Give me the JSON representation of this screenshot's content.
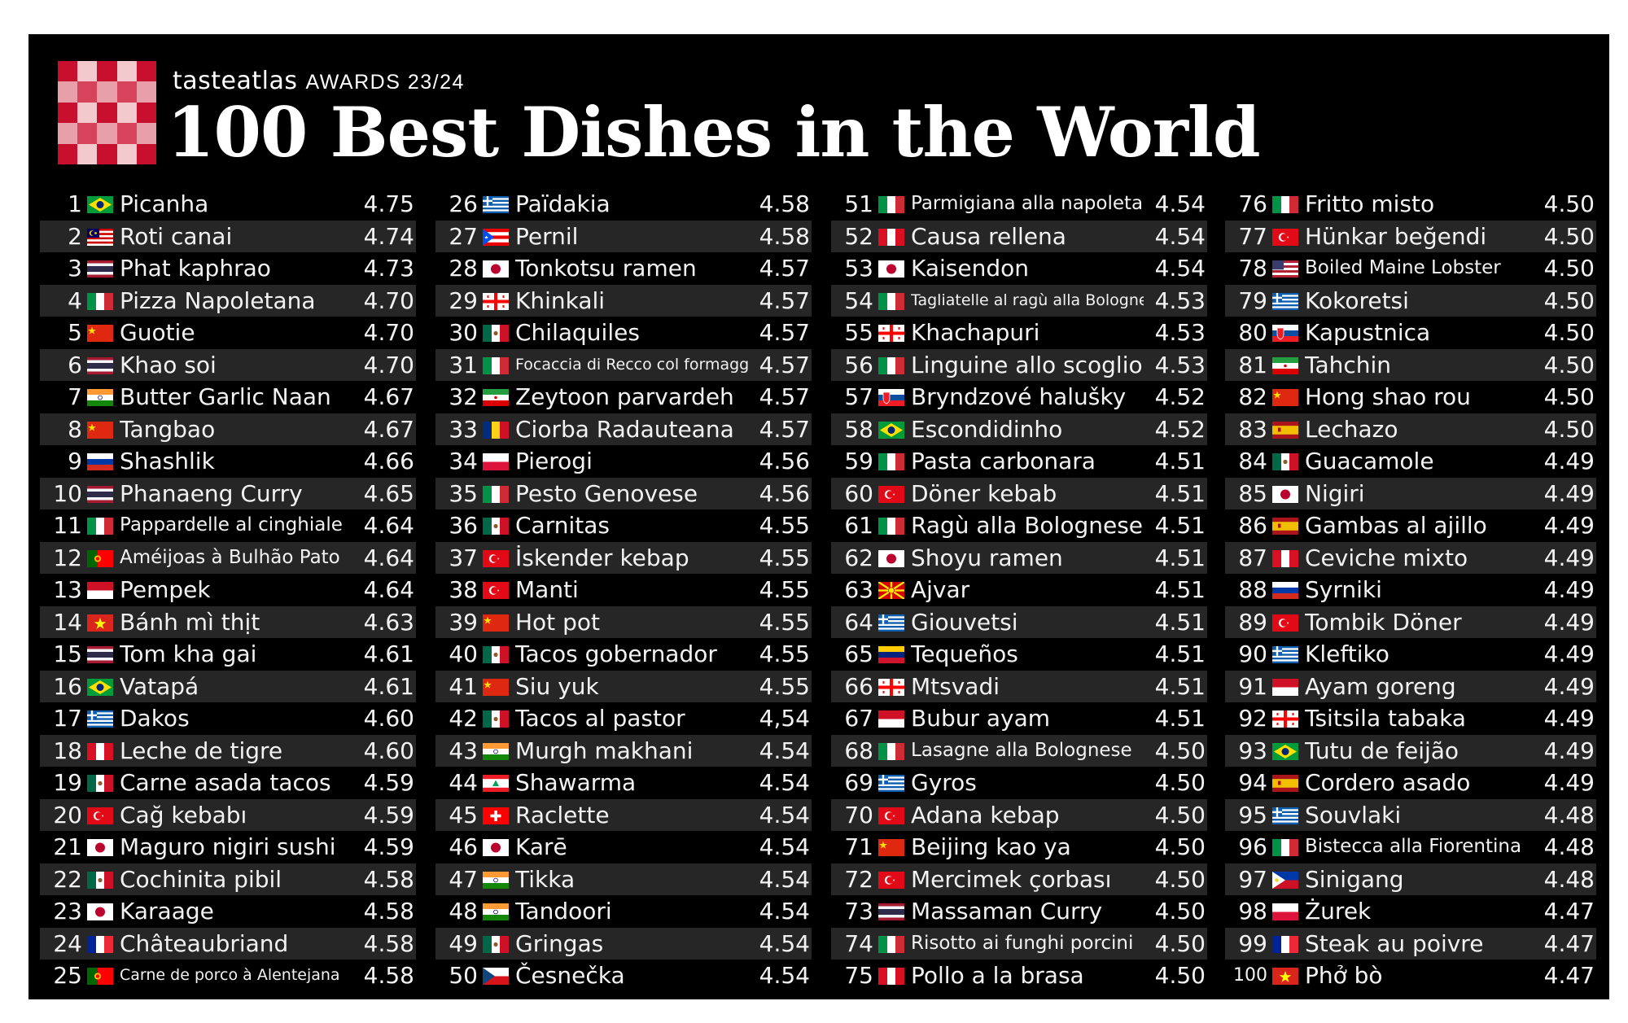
{
  "header": {
    "brand": "tasteatlas",
    "awards": "AWARDS 23/24",
    "title": "100 Best Dishes in the World"
  },
  "dishes": [
    {
      "rank": "1",
      "name": "Picanha",
      "score": "4.75",
      "flag": "flag-brazil-icon"
    },
    {
      "rank": "2",
      "name": "Roti canai",
      "score": "4.74",
      "flag": "flag-malaysia-icon"
    },
    {
      "rank": "3",
      "name": "Phat kaphrao",
      "score": "4.73",
      "flag": "flag-thailand-icon"
    },
    {
      "rank": "4",
      "name": "Pizza Napoletana",
      "score": "4.70",
      "flag": "flag-italy-icon"
    },
    {
      "rank": "5",
      "name": "Guotie",
      "score": "4.70",
      "flag": "flag-china-icon"
    },
    {
      "rank": "6",
      "name": "Khao soi",
      "score": "4.70",
      "flag": "flag-thailand-icon"
    },
    {
      "rank": "7",
      "name": "Butter Garlic Naan",
      "score": "4.67",
      "flag": "flag-india-icon"
    },
    {
      "rank": "8",
      "name": "Tangbao",
      "score": "4.67",
      "flag": "flag-china-icon"
    },
    {
      "rank": "9",
      "name": "Shashlik",
      "score": "4.66",
      "flag": "flag-russia-icon"
    },
    {
      "rank": "10",
      "name": "Phanaeng Curry",
      "score": "4.65",
      "flag": "flag-thailand-icon"
    },
    {
      "rank": "11",
      "name": "Pappardelle al cinghiale",
      "score": "4.64",
      "flag": "flag-italy-icon"
    },
    {
      "rank": "12",
      "name": "Améijoas à Bulhão Pato",
      "score": "4.64",
      "flag": "flag-portugal-icon"
    },
    {
      "rank": "13",
      "name": "Pempek",
      "score": "4.64",
      "flag": "flag-indonesia-icon"
    },
    {
      "rank": "14",
      "name": "Bánh mì thịt",
      "score": "4.63",
      "flag": "flag-vietnam-icon"
    },
    {
      "rank": "15",
      "name": "Tom kha gai",
      "score": "4.61",
      "flag": "flag-thailand-icon"
    },
    {
      "rank": "16",
      "name": "Vatapá",
      "score": "4.61",
      "flag": "flag-brazil-icon"
    },
    {
      "rank": "17",
      "name": "Dakos",
      "score": "4.60",
      "flag": "flag-greece-icon"
    },
    {
      "rank": "18",
      "name": "Leche de tigre",
      "score": "4.60",
      "flag": "flag-peru-icon"
    },
    {
      "rank": "19",
      "name": "Carne asada tacos",
      "score": "4.59",
      "flag": "flag-mexico-icon"
    },
    {
      "rank": "20",
      "name": "Cağ kebabı",
      "score": "4.59",
      "flag": "flag-turkey-icon"
    },
    {
      "rank": "21",
      "name": "Maguro nigiri sushi",
      "score": "4.59",
      "flag": "flag-japan-icon"
    },
    {
      "rank": "22",
      "name": "Cochinita pibil",
      "score": "4.58",
      "flag": "flag-mexico-icon"
    },
    {
      "rank": "23",
      "name": "Karaage",
      "score": "4.58",
      "flag": "flag-japan-icon"
    },
    {
      "rank": "24",
      "name": "Châteaubriand",
      "score": "4.58",
      "flag": "flag-france-icon"
    },
    {
      "rank": "25",
      "name": "Carne de porco à Alentejana",
      "score": "4.58",
      "flag": "flag-portugal-icon"
    },
    {
      "rank": "26",
      "name": "Païdakia",
      "score": "4.58",
      "flag": "flag-greece-icon"
    },
    {
      "rank": "27",
      "name": "Pernil",
      "score": "4.58",
      "flag": "flag-puerto-rico-icon"
    },
    {
      "rank": "28",
      "name": "Tonkotsu ramen",
      "score": "4.57",
      "flag": "flag-japan-icon"
    },
    {
      "rank": "29",
      "name": "Khinkali",
      "score": "4.57",
      "flag": "flag-georgia-icon"
    },
    {
      "rank": "30",
      "name": "Chilaquiles",
      "score": "4.57",
      "flag": "flag-mexico-icon"
    },
    {
      "rank": "31",
      "name": "Focaccia di Recco col formaggio",
      "score": "4.57",
      "flag": "flag-italy-icon"
    },
    {
      "rank": "32",
      "name": "Zeytoon parvardeh",
      "score": "4.57",
      "flag": "flag-iran-icon"
    },
    {
      "rank": "33",
      "name": "Ciorba Radauteana",
      "score": "4.57",
      "flag": "flag-romania-icon"
    },
    {
      "rank": "34",
      "name": "Pierogi",
      "score": "4.56",
      "flag": "flag-poland-icon"
    },
    {
      "rank": "35",
      "name": "Pesto Genovese",
      "score": "4.56",
      "flag": "flag-italy-icon"
    },
    {
      "rank": "36",
      "name": "Carnitas",
      "score": "4.55",
      "flag": "flag-mexico-icon"
    },
    {
      "rank": "37",
      "name": "İskender kebap",
      "score": "4.55",
      "flag": "flag-turkey-icon"
    },
    {
      "rank": "38",
      "name": "Manti",
      "score": "4.55",
      "flag": "flag-turkey-icon"
    },
    {
      "rank": "39",
      "name": "Hot pot",
      "score": "4.55",
      "flag": "flag-china-icon"
    },
    {
      "rank": "40",
      "name": "Tacos gobernador",
      "score": "4.55",
      "flag": "flag-mexico-icon"
    },
    {
      "rank": "41",
      "name": "Siu yuk",
      "score": "4.55",
      "flag": "flag-china-icon"
    },
    {
      "rank": "42",
      "name": "Tacos al pastor",
      "score": "4,54",
      "flag": "flag-mexico-icon"
    },
    {
      "rank": "43",
      "name": "Murgh makhani",
      "score": "4.54",
      "flag": "flag-india-icon"
    },
    {
      "rank": "44",
      "name": "Shawarma",
      "score": "4.54",
      "flag": "flag-lebanon-icon"
    },
    {
      "rank": "45",
      "name": "Raclette",
      "score": "4.54",
      "flag": "flag-switzerland-icon"
    },
    {
      "rank": "46",
      "name": "Karē",
      "score": "4.54",
      "flag": "flag-japan-icon"
    },
    {
      "rank": "47",
      "name": "Tikka",
      "score": "4.54",
      "flag": "flag-india-icon"
    },
    {
      "rank": "48",
      "name": "Tandoori",
      "score": "4.54",
      "flag": "flag-india-icon"
    },
    {
      "rank": "49",
      "name": "Gringas",
      "score": "4.54",
      "flag": "flag-mexico-icon"
    },
    {
      "rank": "50",
      "name": "Česnečka",
      "score": "4.54",
      "flag": "flag-czechia-icon"
    },
    {
      "rank": "51",
      "name": "Parmigiana alla napoletana",
      "score": "4.54",
      "flag": "flag-italy-icon"
    },
    {
      "rank": "52",
      "name": "Causa rellena",
      "score": "4.54",
      "flag": "flag-peru-icon"
    },
    {
      "rank": "53",
      "name": "Kaisendon",
      "score": "4.54",
      "flag": "flag-japan-icon"
    },
    {
      "rank": "54",
      "name": "Tagliatelle al ragù alla Bolognese",
      "score": "4.53",
      "flag": "flag-italy-icon"
    },
    {
      "rank": "55",
      "name": "Khachapuri",
      "score": "4.53",
      "flag": "flag-georgia-icon"
    },
    {
      "rank": "56",
      "name": "Linguine allo scoglio",
      "score": "4.53",
      "flag": "flag-italy-icon"
    },
    {
      "rank": "57",
      "name": "Bryndzové halušky",
      "score": "4.52",
      "flag": "flag-slovakia-icon"
    },
    {
      "rank": "58",
      "name": "Escondidinho",
      "score": "4.52",
      "flag": "flag-brazil-icon"
    },
    {
      "rank": "59",
      "name": "Pasta carbonara",
      "score": "4.51",
      "flag": "flag-italy-icon"
    },
    {
      "rank": "60",
      "name": "Döner kebab",
      "score": "4.51",
      "flag": "flag-turkey-icon"
    },
    {
      "rank": "61",
      "name": "Ragù alla Bolognese",
      "score": "4.51",
      "flag": "flag-italy-icon"
    },
    {
      "rank": "62",
      "name": "Shoyu ramen",
      "score": "4.51",
      "flag": "flag-japan-icon"
    },
    {
      "rank": "63",
      "name": "Ajvar",
      "score": "4.51",
      "flag": "flag-north-macedonia-icon"
    },
    {
      "rank": "64",
      "name": "Giouvetsi",
      "score": "4.51",
      "flag": "flag-greece-icon"
    },
    {
      "rank": "65",
      "name": "Tequeños",
      "score": "4.51",
      "flag": "flag-venezuela-icon"
    },
    {
      "rank": "66",
      "name": "Mtsvadi",
      "score": "4.51",
      "flag": "flag-georgia-icon"
    },
    {
      "rank": "67",
      "name": "Bubur ayam",
      "score": "4.51",
      "flag": "flag-indonesia-icon"
    },
    {
      "rank": "68",
      "name": "Lasagne alla Bolognese",
      "score": "4.50",
      "flag": "flag-italy-icon"
    },
    {
      "rank": "69",
      "name": "Gyros",
      "score": "4.50",
      "flag": "flag-greece-icon"
    },
    {
      "rank": "70",
      "name": "Adana kebap",
      "score": "4.50",
      "flag": "flag-turkey-icon"
    },
    {
      "rank": "71",
      "name": "Beijing kao ya",
      "score": "4.50",
      "flag": "flag-china-icon"
    },
    {
      "rank": "72",
      "name": "Mercimek çorbası",
      "score": "4.50",
      "flag": "flag-turkey-icon"
    },
    {
      "rank": "73",
      "name": "Massaman Curry",
      "score": "4.50",
      "flag": "flag-thailand-icon"
    },
    {
      "rank": "74",
      "name": "Risotto ai funghi porcini",
      "score": "4.50",
      "flag": "flag-italy-icon"
    },
    {
      "rank": "75",
      "name": "Pollo a la brasa",
      "score": "4.50",
      "flag": "flag-peru-icon"
    },
    {
      "rank": "76",
      "name": "Fritto misto",
      "score": "4.50",
      "flag": "flag-italy-icon"
    },
    {
      "rank": "77",
      "name": "Hünkar beğendi",
      "score": "4.50",
      "flag": "flag-turkey-icon"
    },
    {
      "rank": "78",
      "name": "Boiled Maine Lobster",
      "score": "4.50",
      "flag": "flag-usa-icon"
    },
    {
      "rank": "79",
      "name": "Kokoretsi",
      "score": "4.50",
      "flag": "flag-greece-icon"
    },
    {
      "rank": "80",
      "name": "Kapustnica",
      "score": "4.50",
      "flag": "flag-slovakia-icon"
    },
    {
      "rank": "81",
      "name": "Tahchin",
      "score": "4.50",
      "flag": "flag-iran-icon"
    },
    {
      "rank": "82",
      "name": "Hong shao rou",
      "score": "4.50",
      "flag": "flag-china-icon"
    },
    {
      "rank": "83",
      "name": "Lechazo",
      "score": "4.50",
      "flag": "flag-spain-icon"
    },
    {
      "rank": "84",
      "name": "Guacamole",
      "score": "4.49",
      "flag": "flag-mexico-icon"
    },
    {
      "rank": "85",
      "name": "Nigiri",
      "score": "4.49",
      "flag": "flag-japan-icon"
    },
    {
      "rank": "86",
      "name": "Gambas al ajillo",
      "score": "4.49",
      "flag": "flag-spain-icon"
    },
    {
      "rank": "87",
      "name": "Ceviche mixto",
      "score": "4.49",
      "flag": "flag-peru-icon"
    },
    {
      "rank": "88",
      "name": "Syrniki",
      "score": "4.49",
      "flag": "flag-russia-icon"
    },
    {
      "rank": "89",
      "name": "Tombik Döner",
      "score": "4.49",
      "flag": "flag-turkey-icon"
    },
    {
      "rank": "90",
      "name": "Kleftiko",
      "score": "4.49",
      "flag": "flag-greece-icon"
    },
    {
      "rank": "91",
      "name": "Ayam goreng",
      "score": "4.49",
      "flag": "flag-indonesia-icon"
    },
    {
      "rank": "92",
      "name": "Tsitsila tabaka",
      "score": "4.49",
      "flag": "flag-georgia-icon"
    },
    {
      "rank": "93",
      "name": "Tutu de feijão",
      "score": "4.49",
      "flag": "flag-brazil-icon"
    },
    {
      "rank": "94",
      "name": "Cordero asado",
      "score": "4.49",
      "flag": "flag-spain-icon"
    },
    {
      "rank": "95",
      "name": "Souvlaki",
      "score": "4.48",
      "flag": "flag-greece-icon"
    },
    {
      "rank": "96",
      "name": "Bistecca alla Fiorentina",
      "score": "4.48",
      "flag": "flag-italy-icon"
    },
    {
      "rank": "97",
      "name": "Sinigang",
      "score": "4.48",
      "flag": "flag-philippines-icon"
    },
    {
      "rank": "98",
      "name": "Żurek",
      "score": "4.47",
      "flag": "flag-poland-icon"
    },
    {
      "rank": "99",
      "name": "Steak au poivre",
      "score": "4.47",
      "flag": "flag-france-icon"
    },
    {
      "rank": "100",
      "name": "Phở bò",
      "score": "4.47",
      "flag": "flag-vietnam-icon"
    }
  ]
}
